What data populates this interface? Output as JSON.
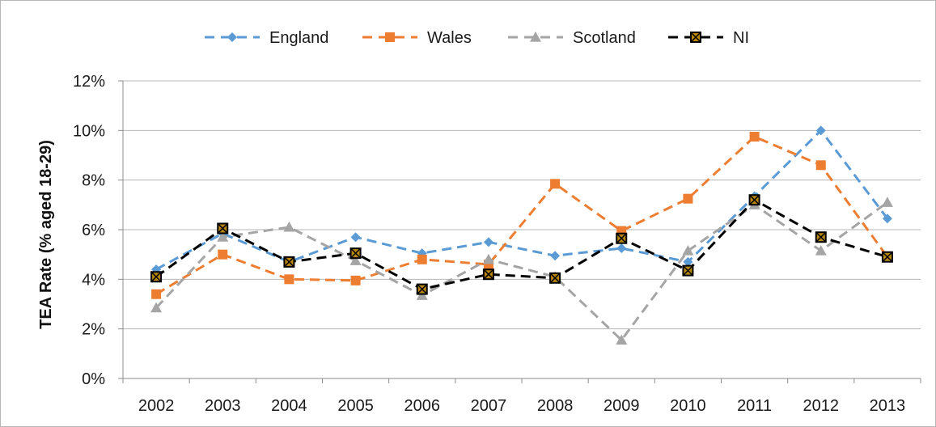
{
  "chart_data": {
    "type": "line",
    "title": "",
    "xlabel": "",
    "ylabel": "TEA Rate (% aged 18-29)",
    "categories": [
      "2002",
      "2003",
      "2004",
      "2005",
      "2006",
      "2007",
      "2008",
      "2009",
      "2010",
      "2011",
      "2012",
      "2013"
    ],
    "ylim": [
      0,
      12
    ],
    "yticks": [
      0,
      2,
      4,
      6,
      8,
      10,
      12
    ],
    "ytick_labels": [
      "0%",
      "2%",
      "4%",
      "6%",
      "8%",
      "10%",
      "12%"
    ],
    "grid": true,
    "legend_position": "top",
    "series": [
      {
        "name": "England",
        "color": "#5b9bd5",
        "marker": "diamond",
        "values": [
          4.4,
          5.85,
          4.7,
          5.7,
          5.05,
          5.5,
          4.95,
          5.25,
          4.7,
          7.35,
          10.0,
          6.45
        ]
      },
      {
        "name": "Wales",
        "color": "#ed7d31",
        "marker": "square",
        "values": [
          3.4,
          5.0,
          4.0,
          3.95,
          4.8,
          4.6,
          7.85,
          5.95,
          7.25,
          9.75,
          8.6,
          4.9
        ]
      },
      {
        "name": "Scotland",
        "color": "#a5a5a5",
        "marker": "triangle",
        "values": [
          2.85,
          5.7,
          6.1,
          4.75,
          3.35,
          4.8,
          4.1,
          1.55,
          5.15,
          7.0,
          5.15,
          7.1
        ]
      },
      {
        "name": "NI",
        "color": "#000000",
        "marker": "xsquare",
        "values": [
          4.1,
          6.05,
          4.7,
          5.05,
          3.6,
          4.2,
          4.05,
          5.65,
          4.35,
          7.2,
          5.7,
          4.9
        ]
      }
    ]
  }
}
